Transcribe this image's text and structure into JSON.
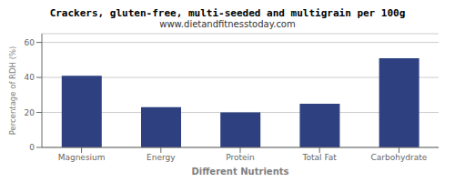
{
  "chart_data": {
    "type": "bar",
    "title": "Crackers, gluten-free, multi-seeded and multigrain per 100g",
    "subtitle": "www.dietandfitnesstoday.com",
    "categories": [
      "Magnesium",
      "Energy",
      "Protein",
      "Total Fat",
      "Carbohydrate"
    ],
    "values": [
      41,
      23,
      20,
      25,
      51
    ],
    "color": "#2e4080",
    "xlabel": "Different Nutrients",
    "ylabel": "Percentage of RDH (%)",
    "ylim": [
      0,
      65
    ],
    "yticks": [
      0,
      20,
      40,
      60
    ],
    "grid": true
  }
}
